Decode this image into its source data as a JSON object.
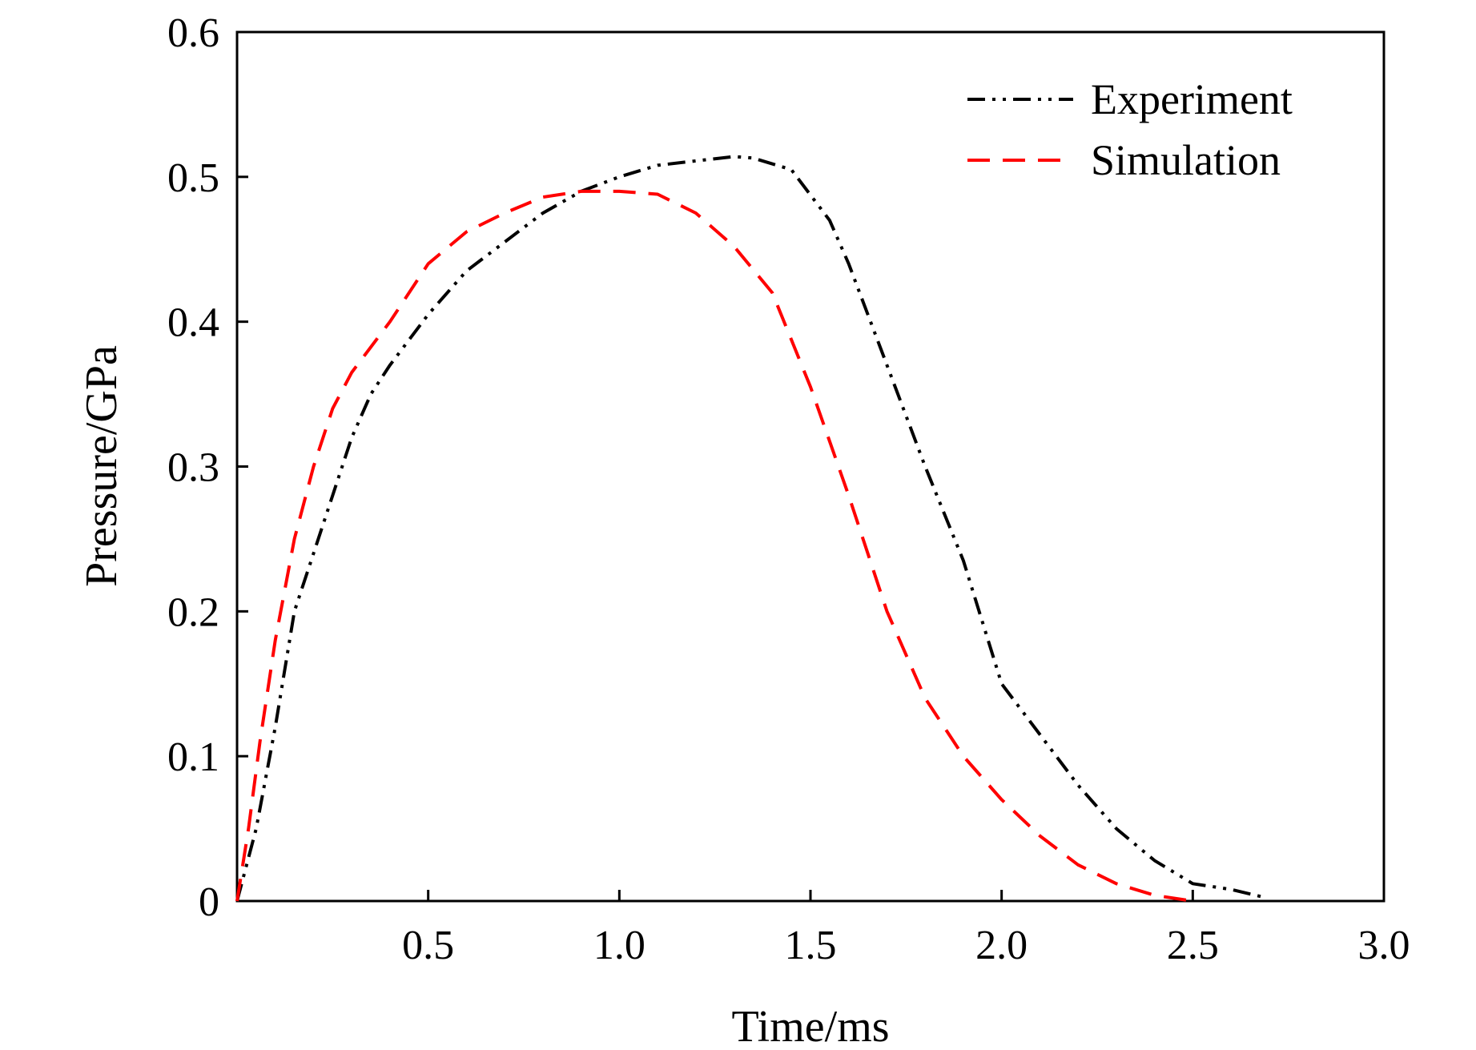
{
  "chart_data": {
    "type": "line",
    "title": "",
    "xlabel": "Time/ms",
    "ylabel": "Pressure/GPa",
    "xlim": [
      0,
      3.0
    ],
    "ylim": [
      0,
      0.6
    ],
    "x_ticks": [
      0.5,
      1.0,
      1.5,
      2.0,
      2.5,
      3.0
    ],
    "x_tick_labels": [
      "0.5",
      "1.0",
      "1.5",
      "2.0",
      "2.5",
      "3.0"
    ],
    "y_ticks": [
      0,
      0.1,
      0.2,
      0.3,
      0.4,
      0.5,
      0.6
    ],
    "y_tick_labels": [
      "0",
      "0.1",
      "0.2",
      "0.3",
      "0.4",
      "0.5",
      "0.6"
    ],
    "grid": false,
    "legend_position": "top-right",
    "series": [
      {
        "name": "Experiment",
        "color": "#000000",
        "dash": "dash-dot-dot",
        "points": [
          [
            0.0,
            0.0
          ],
          [
            0.05,
            0.05
          ],
          [
            0.1,
            0.12
          ],
          [
            0.15,
            0.2
          ],
          [
            0.2,
            0.24
          ],
          [
            0.25,
            0.28
          ],
          [
            0.3,
            0.32
          ],
          [
            0.35,
            0.35
          ],
          [
            0.4,
            0.37
          ],
          [
            0.5,
            0.405
          ],
          [
            0.6,
            0.435
          ],
          [
            0.7,
            0.455
          ],
          [
            0.8,
            0.475
          ],
          [
            0.9,
            0.49
          ],
          [
            1.0,
            0.5
          ],
          [
            1.1,
            0.508
          ],
          [
            1.2,
            0.511
          ],
          [
            1.3,
            0.514
          ],
          [
            1.35,
            0.513
          ],
          [
            1.45,
            0.505
          ],
          [
            1.55,
            0.47
          ],
          [
            1.6,
            0.44
          ],
          [
            1.7,
            0.37
          ],
          [
            1.8,
            0.3
          ],
          [
            1.9,
            0.235
          ],
          [
            2.0,
            0.15
          ],
          [
            2.1,
            0.115
          ],
          [
            2.2,
            0.08
          ],
          [
            2.3,
            0.05
          ],
          [
            2.4,
            0.028
          ],
          [
            2.5,
            0.012
          ],
          [
            2.6,
            0.008
          ],
          [
            2.68,
            0.003
          ]
        ]
      },
      {
        "name": "Simulation",
        "color": "#ff0000",
        "dash": "dashed",
        "points": [
          [
            0.0,
            0.0
          ],
          [
            0.03,
            0.05
          ],
          [
            0.06,
            0.11
          ],
          [
            0.1,
            0.18
          ],
          [
            0.15,
            0.25
          ],
          [
            0.2,
            0.3
          ],
          [
            0.25,
            0.34
          ],
          [
            0.3,
            0.365
          ],
          [
            0.4,
            0.4
          ],
          [
            0.5,
            0.44
          ],
          [
            0.6,
            0.462
          ],
          [
            0.7,
            0.475
          ],
          [
            0.8,
            0.486
          ],
          [
            0.9,
            0.49
          ],
          [
            1.0,
            0.49
          ],
          [
            1.1,
            0.488
          ],
          [
            1.2,
            0.475
          ],
          [
            1.3,
            0.452
          ],
          [
            1.4,
            0.42
          ],
          [
            1.5,
            0.355
          ],
          [
            1.6,
            0.28
          ],
          [
            1.7,
            0.2
          ],
          [
            1.8,
            0.14
          ],
          [
            1.9,
            0.1
          ],
          [
            2.0,
            0.07
          ],
          [
            2.1,
            0.045
          ],
          [
            2.2,
            0.025
          ],
          [
            2.3,
            0.012
          ],
          [
            2.4,
            0.004
          ],
          [
            2.5,
            0.0
          ]
        ]
      }
    ]
  }
}
